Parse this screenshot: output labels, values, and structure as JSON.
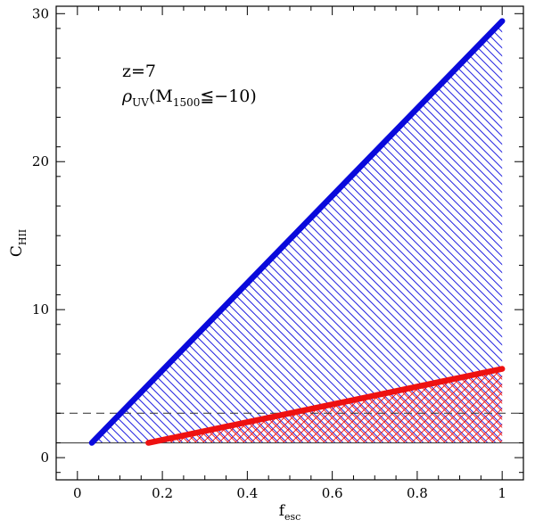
{
  "chart_data": {
    "type": "line",
    "title": "",
    "xlabel": {
      "main": "f",
      "sub": "esc"
    },
    "ylabel": {
      "main": "C",
      "sub": "HII"
    },
    "xlim": [
      -0.05,
      1.05
    ],
    "ylim": [
      -1.5,
      30.5
    ],
    "x_ticks": [
      0,
      0.2,
      0.4,
      0.6,
      0.8,
      1
    ],
    "x_tick_labels": [
      "0",
      "0.2",
      "0.4",
      "0.6",
      "0.8",
      "1"
    ],
    "y_ticks": [
      0,
      10,
      20,
      30
    ],
    "y_tick_labels": [
      "0",
      "10",
      "20",
      "30"
    ],
    "grid": false,
    "legend": "none",
    "series": [
      {
        "color": "#0a0adc",
        "x": [
          0.034,
          1.0
        ],
        "y": [
          1.0,
          29.5
        ],
        "fill_to": 1.0,
        "hatch": "backslash"
      },
      {
        "color": "#ee1111",
        "x": [
          0.167,
          1.0
        ],
        "y": [
          1.0,
          6.0
        ],
        "fill_to": 1.0,
        "hatch": "crosshatch"
      }
    ],
    "hlines": [
      {
        "y": 1.0,
        "style": "solid",
        "color": "#444444"
      },
      {
        "y": 3.0,
        "style": "dashed",
        "color": "#444444"
      }
    ],
    "annotations": [
      {
        "text": "z=7"
      },
      {
        "prefix": "ρ",
        "prefix_sub": "UV",
        "open": "(M",
        "m_sub": "1500",
        "close": "≦−10)"
      }
    ]
  }
}
